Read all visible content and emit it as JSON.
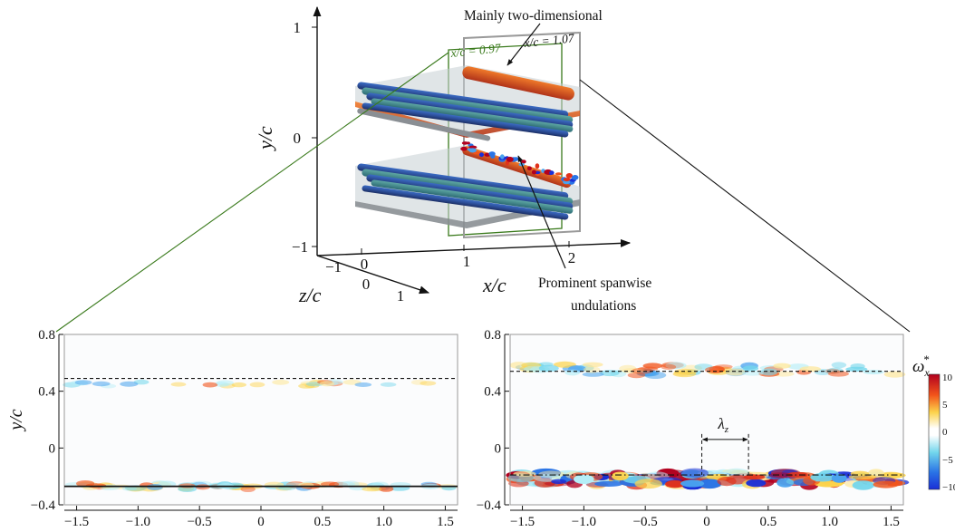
{
  "figure": {
    "annotations": {
      "top": "Mainly two-dimensional",
      "bottom_line1": "Prominent spanwise",
      "bottom_line2": "undulations",
      "plane1": "x/c = 0.97",
      "plane2": "x/c = 1.07",
      "lambda": "λ",
      "lambda_sub": "z"
    },
    "colors": {
      "plane1": "#3a7a1c",
      "plane2": "#9a9a9a",
      "dashed_line": "#111111",
      "colorbar_high": "#b2001f",
      "colorbar_low": "#1a2fd6"
    },
    "iso_3d": {
      "axes": {
        "y_label": "y/c",
        "x_label": "x/c",
        "z_label": "z/c",
        "y_ticks": [
          "1",
          "0",
          "−1"
        ],
        "x_ticks": [
          "0",
          "1",
          "2"
        ],
        "z_ticks": [
          "−1",
          "0",
          "1"
        ]
      }
    },
    "colorbar": {
      "label": "ω",
      "label_sub": "x",
      "label_sup": "*",
      "ticks": [
        "10",
        "5",
        "0",
        "−5",
        "−10"
      ],
      "range": [
        -10,
        10
      ]
    }
  },
  "chart_data": [
    {
      "type": "heatmap",
      "title": "",
      "xlabel": "z/c",
      "ylabel": "y/c",
      "xlim": [
        -1.6,
        1.6
      ],
      "ylim": [
        -0.4,
        0.8
      ],
      "x_ticks": [
        "−1.5",
        "−1.0",
        "−0.5",
        "0",
        "0.5",
        "1.0",
        "1.5"
      ],
      "y_ticks": [
        "0.8",
        "0.4",
        "0",
        "−0.4"
      ],
      "upper_wake_level": 0.49,
      "lower_wake_level": -0.27,
      "upper_line_style": "dashed",
      "lower_line_style": "solid"
    },
    {
      "type": "heatmap",
      "title": "",
      "xlabel": "z/c",
      "ylabel": "",
      "xlim": [
        -1.6,
        1.6
      ],
      "ylim": [
        -0.4,
        0.8
      ],
      "x_ticks": [
        "−1.5",
        "−1.0",
        "−0.5",
        "0",
        "0.5",
        "1.0",
        "1.5"
      ],
      "y_ticks": [
        "0.8",
        "0.4",
        "0",
        "−0.4"
      ],
      "upper_wake_level": 0.54,
      "lower_wake_level": -0.19,
      "upper_line_style": "dashed",
      "lower_line_style": "dash-dot",
      "lambda_z_extent": [
        -0.04,
        0.34
      ]
    }
  ]
}
